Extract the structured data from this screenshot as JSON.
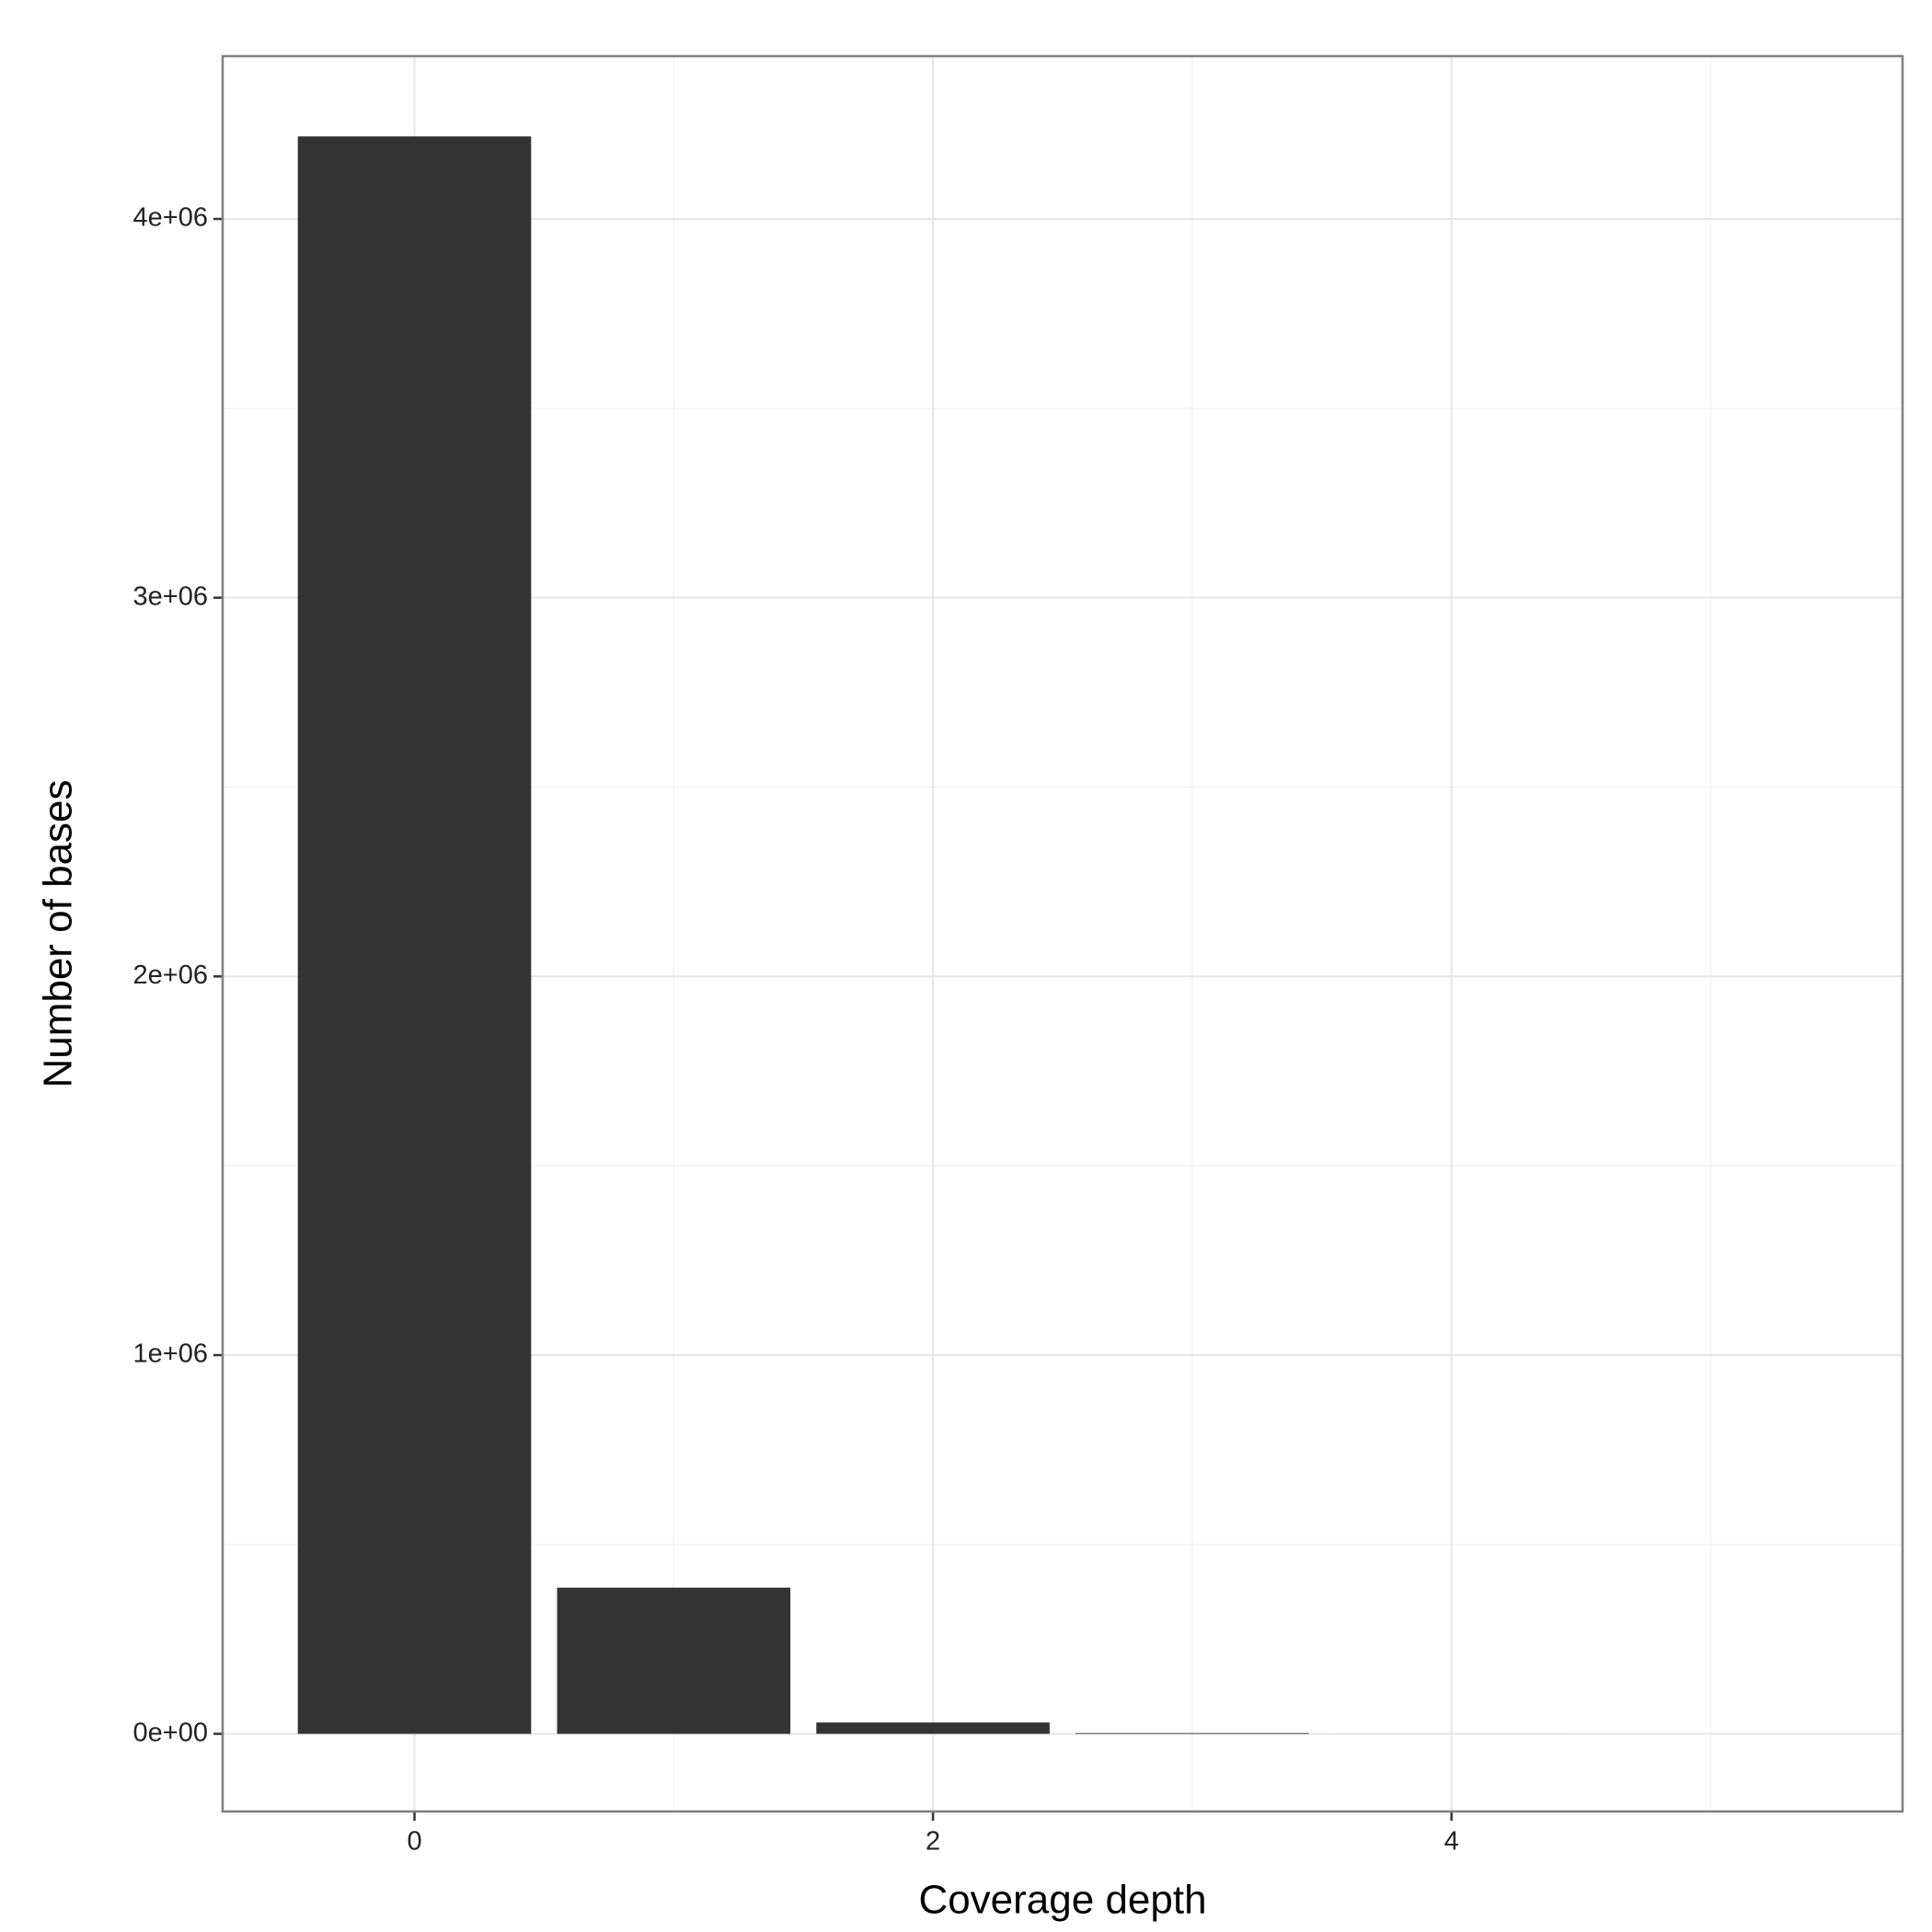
{
  "chart_data": {
    "type": "bar",
    "x_label": "Coverage depth",
    "y_label": "Number of bases",
    "x": [
      0,
      1,
      2,
      3,
      4,
      5
    ],
    "values": [
      4218000,
      386000,
      30000,
      2000,
      100,
      10
    ],
    "color": "#333333",
    "bar_width": 0.9,
    "xlim": [
      -0.74,
      5.74
    ],
    "xticks": [
      0,
      2,
      4
    ],
    "minor_xticks": [
      1,
      3,
      5
    ],
    "ylim": [
      -205000,
      4430000
    ],
    "yticks": [
      {
        "value": 0,
        "label": "0e+00"
      },
      {
        "value": 1000000,
        "label": "1e+06"
      },
      {
        "value": 2000000,
        "label": "2e+06"
      },
      {
        "value": 3000000,
        "label": "3e+06"
      },
      {
        "value": 4000000,
        "label": "4e+06"
      }
    ],
    "minor_yticks": [
      500000,
      1500000,
      2500000,
      3500000
    ],
    "grid": true
  }
}
